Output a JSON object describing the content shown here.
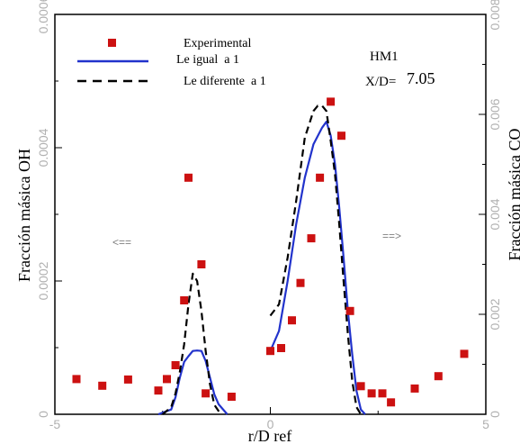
{
  "chart_data": {
    "type": "line",
    "xlabel": "r/D ref",
    "ylabel": "Fracción másica OH",
    "y2label": "Fracción másica CO",
    "xlim": [
      -5,
      5
    ],
    "ylim": [
      0,
      0.0006
    ],
    "y2lim": [
      0,
      0.008
    ],
    "x_ticks": [
      "-5",
      "0",
      "5"
    ],
    "y_ticks": [
      "0",
      "0.0002",
      "0.0004",
      "0.0006"
    ],
    "y2_ticks": [
      "0",
      "0.002",
      "0.004",
      "0.006",
      "0.008"
    ],
    "grid": false,
    "legend_position": "top-left",
    "annotations": {
      "case": "HM1",
      "station_label": "X/D=",
      "station_value": "7.05",
      "arrow_left": "<==",
      "arrow_right": "==>"
    },
    "series": [
      {
        "name": "Experimental",
        "kind": "markers",
        "color": "#cc1111",
        "points": [
          [
            -4.5,
            5.29e-05
          ],
          [
            -3.9,
            4.29e-05
          ],
          [
            -3.3,
            5.21e-05
          ],
          [
            -2.6,
            3.57e-05
          ],
          [
            -2.4,
            5.29e-05
          ],
          [
            -2.2,
            7.36e-05
          ],
          [
            -2.0,
            0.000171
          ],
          [
            -1.9,
            0.000355
          ],
          [
            -1.6,
            0.000225
          ],
          [
            -1.5,
            3.14e-05
          ],
          [
            -0.9,
            2.64e-05
          ],
          [
            0.0,
            9.5e-05
          ],
          [
            0.25,
            9.93e-05
          ],
          [
            0.5,
            0.000141
          ],
          [
            0.7,
            0.000197
          ],
          [
            0.95,
            0.000264
          ],
          [
            1.15,
            0.000355
          ],
          [
            1.4,
            0.000469
          ],
          [
            1.65,
            0.000418
          ],
          [
            1.85,
            0.000155
          ],
          [
            2.1,
            4.21e-05
          ],
          [
            2.35,
            3.14e-05
          ],
          [
            2.6,
            3.14e-05
          ],
          [
            2.8,
            1.79e-05
          ],
          [
            3.35,
            3.86e-05
          ],
          [
            3.9,
            5.71e-05
          ],
          [
            4.5,
            9.07e-05
          ]
        ]
      },
      {
        "name": "Le igual  a 1",
        "kind": "line",
        "color": "#2233cc",
        "dash": "solid",
        "segments": [
          [
            [
              -2.6,
              0.0
            ],
            [
              -2.3,
              7.1e-06
            ],
            [
              -2.2,
              2.57e-05
            ],
            [
              -2.1,
              5.5e-05
            ],
            [
              -2.0,
              7.86e-05
            ],
            [
              -1.9,
              8.71e-05
            ],
            [
              -1.8,
              9.5e-05
            ],
            [
              -1.7,
              9.57e-05
            ],
            [
              -1.6,
              9.5e-05
            ],
            [
              -1.5,
              8e-05
            ],
            [
              -1.4,
              5.5e-05
            ],
            [
              -1.3,
              3e-05
            ],
            [
              -1.2,
              1.5e-05
            ],
            [
              -1.0,
              0.0
            ]
          ],
          [
            [
              0.0,
              9.5e-05
            ],
            [
              0.2,
              0.000125
            ],
            [
              0.4,
              0.0002
            ],
            [
              0.6,
              0.000285
            ],
            [
              0.8,
              0.000355
            ],
            [
              1.0,
              0.000405
            ],
            [
              1.2,
              0.00043
            ],
            [
              1.3,
              0.000439
            ],
            [
              1.4,
              0.000418
            ],
            [
              1.5,
              0.000375
            ],
            [
              1.6,
              0.00031
            ],
            [
              1.7,
              0.000235
            ],
            [
              1.8,
              0.000155
            ],
            [
              1.9,
              9e-05
            ],
            [
              2.0,
              3.5e-05
            ],
            [
              2.1,
              7.1e-06
            ],
            [
              2.2,
              0.0
            ]
          ]
        ]
      },
      {
        "name": "Le diferente  a 1",
        "kind": "line",
        "color": "#000000",
        "dash": "dashed",
        "segments": [
          [
            [
              -2.5,
              0.0
            ],
            [
              -2.3,
              1.07e-05
            ],
            [
              -2.2,
              3.14e-05
            ],
            [
              -2.1,
              6.36e-05
            ],
            [
              -2.0,
              0.000105
            ],
            [
              -1.9,
              0.000165
            ],
            [
              -1.8,
              0.000211
            ],
            [
              -1.7,
              0.0002
            ],
            [
              -1.6,
              0.000155
            ],
            [
              -1.5,
              9.5e-05
            ],
            [
              -1.4,
              4.5e-05
            ],
            [
              -1.3,
              1.43e-05
            ],
            [
              -1.15,
              0.0
            ]
          ],
          [
            [
              0.0,
              0.000148
            ],
            [
              0.2,
              0.000165
            ],
            [
              0.4,
              0.000235
            ],
            [
              0.6,
              0.00032
            ],
            [
              0.8,
              0.000415
            ],
            [
              1.0,
              0.000455
            ],
            [
              1.1,
              0.000463
            ],
            [
              1.2,
              0.000463
            ],
            [
              1.3,
              0.000455
            ],
            [
              1.4,
              0.00041
            ],
            [
              1.5,
              0.00036
            ],
            [
              1.6,
              0.000285
            ],
            [
              1.7,
              0.0002
            ],
            [
              1.8,
              0.00012
            ],
            [
              1.9,
              5e-05
            ],
            [
              2.0,
              1.07e-05
            ],
            [
              2.1,
              0.0
            ]
          ]
        ]
      }
    ]
  }
}
